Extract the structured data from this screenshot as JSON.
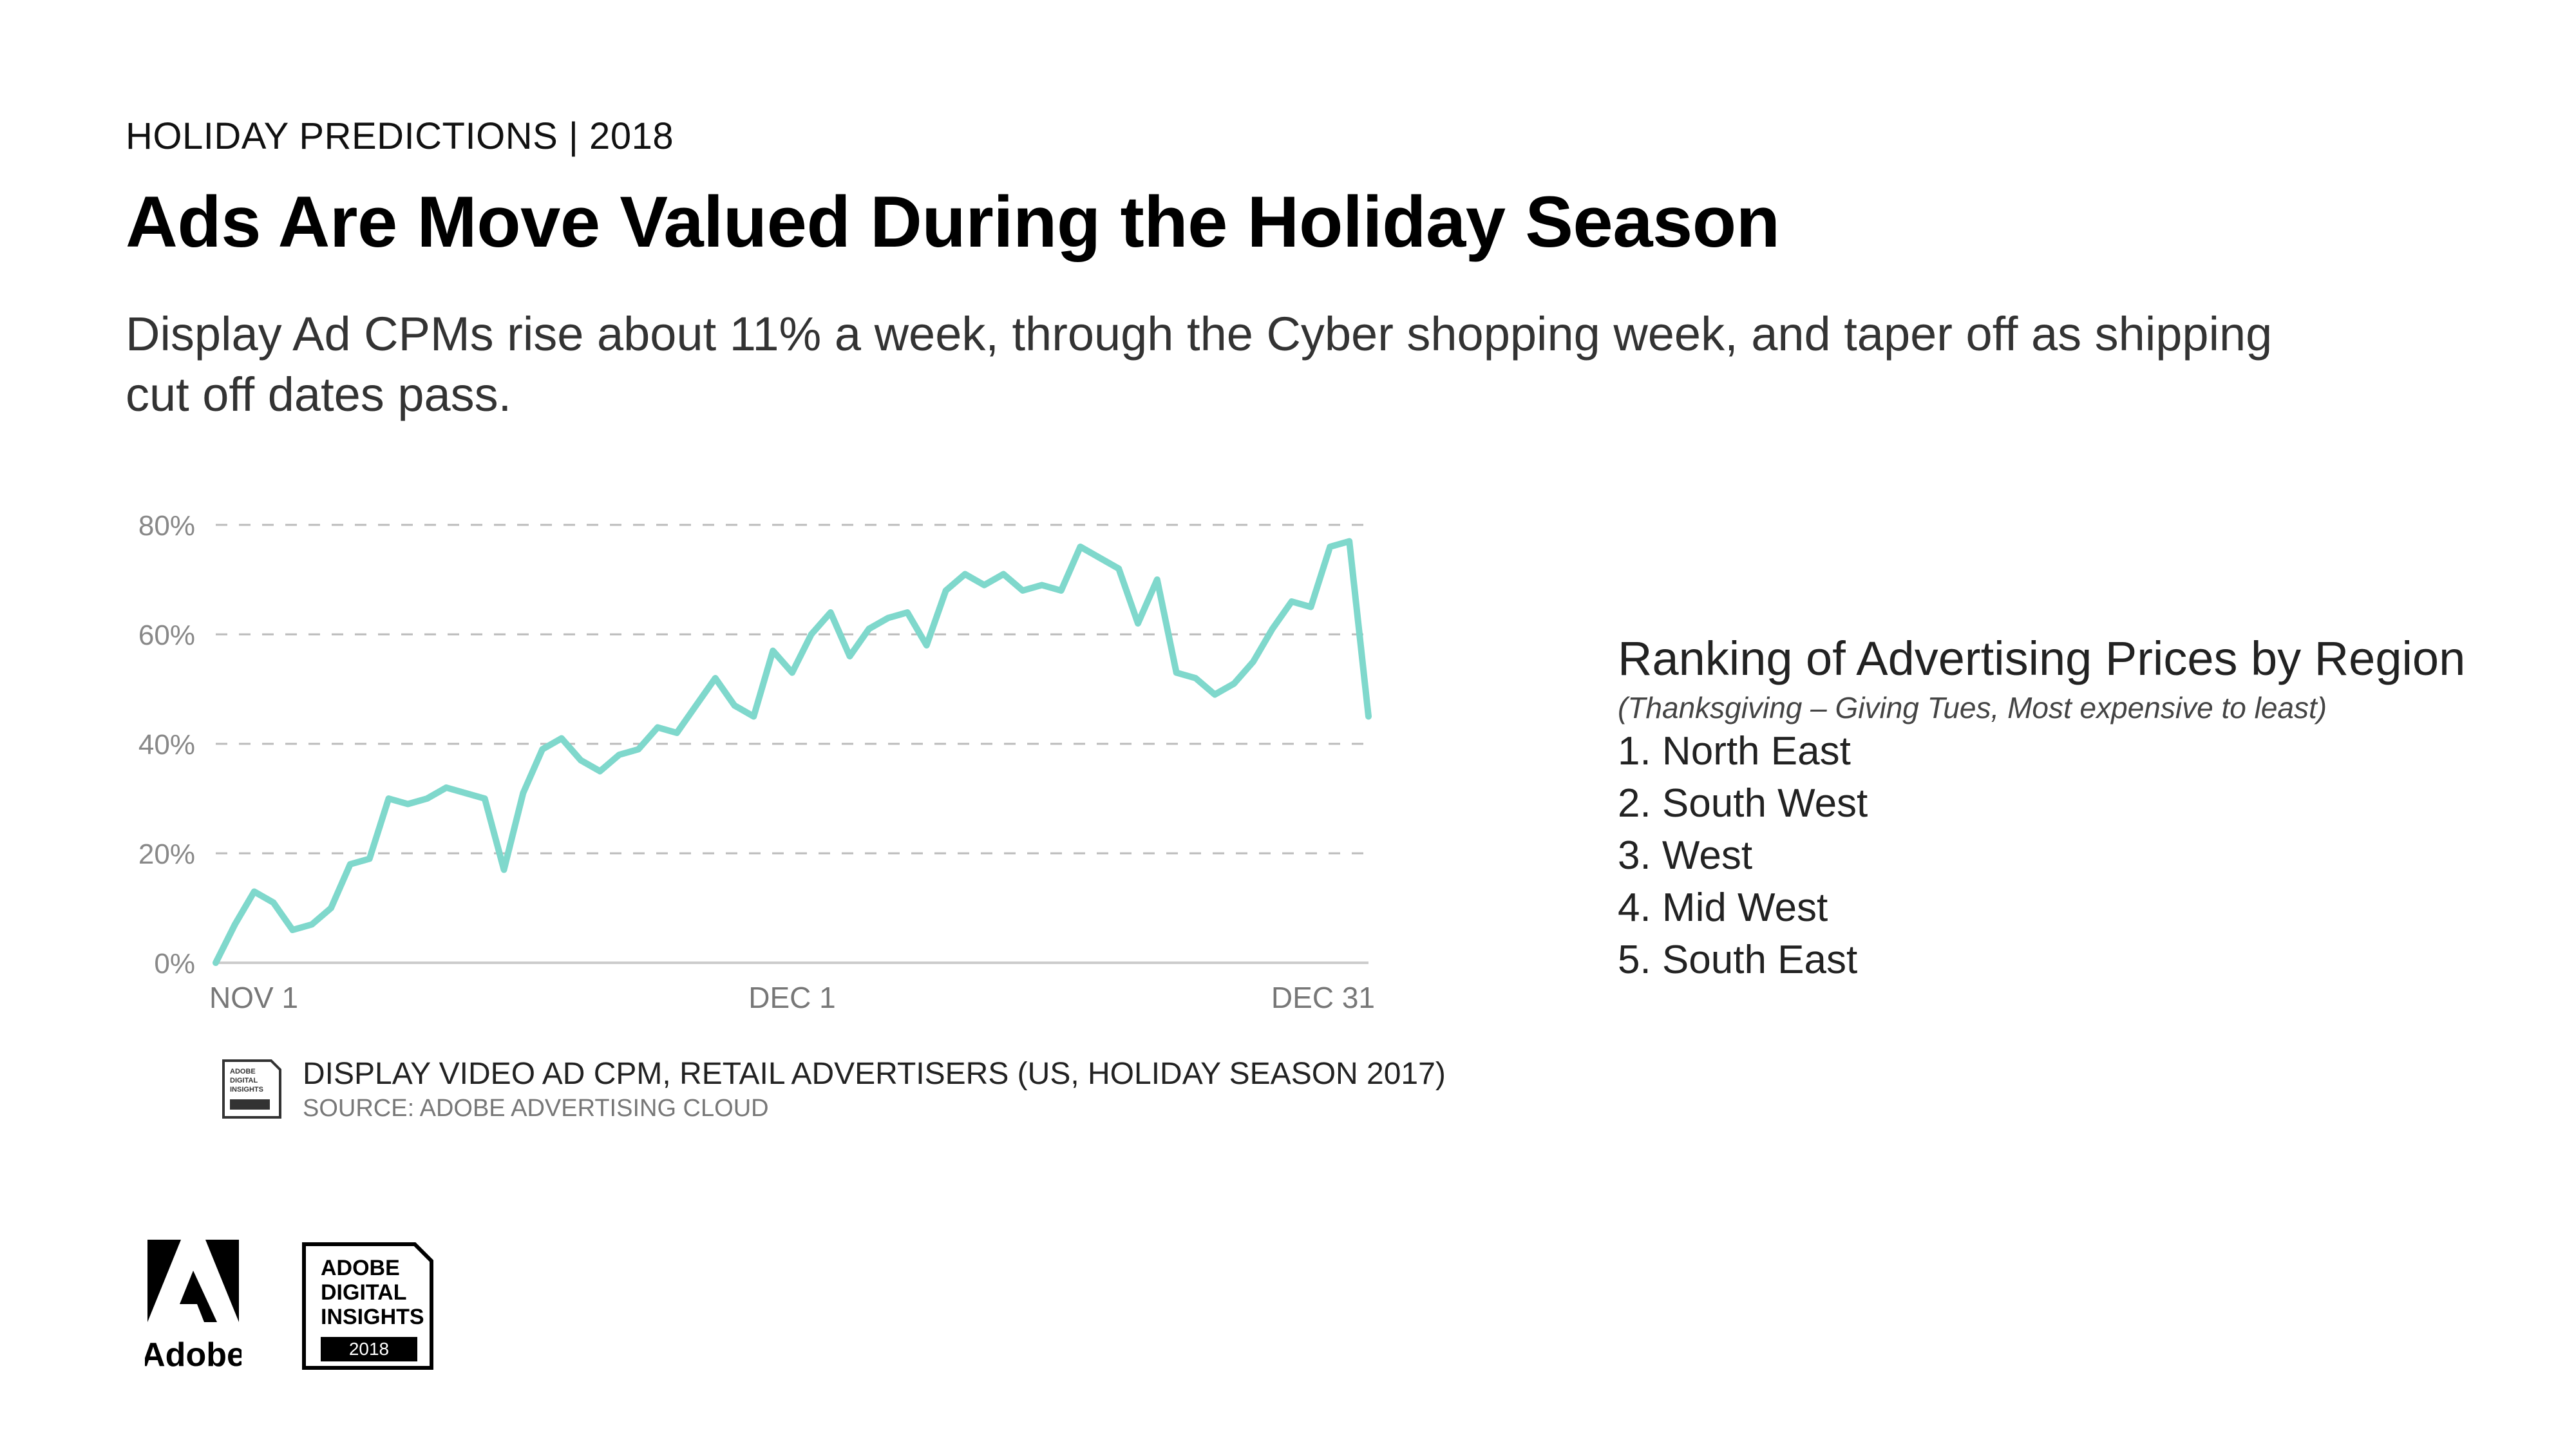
{
  "header": {
    "eyebrow": "HOLIDAY PREDICTIONS | 2018",
    "title": "Ads Are Move Valued During the Holiday Season",
    "subtitle": "Display Ad CPMs rise about 11% a week, through the Cyber shopping week, and taper off as shipping cut off dates pass."
  },
  "chart_data": {
    "type": "line",
    "title": "DISPLAY VIDEO AD CPM, RETAIL ADVERTISERS (US, HOLIDAY SEASON 2017)",
    "source": "SOURCE: ADOBE ADVERTISING CLOUD",
    "xlabel": "",
    "ylabel": "",
    "ylim": [
      0,
      80
    ],
    "grid": true,
    "x_ticks": [
      {
        "label": "NOV 1",
        "day": 1
      },
      {
        "label": "DEC 1",
        "day": 31
      },
      {
        "label": "DEC 31",
        "day": 61
      }
    ],
    "y_ticks": [
      {
        "label": "0%",
        "value": 0
      },
      {
        "label": "20%",
        "value": 20
      },
      {
        "label": "40%",
        "value": 40
      },
      {
        "label": "60%",
        "value": 60
      },
      {
        "label": "80%",
        "value": 80
      }
    ],
    "series": [
      {
        "name": "Display Video Ad CPM",
        "color": "#7fd8cc",
        "x": [
          1,
          2,
          3,
          4,
          5,
          6,
          7,
          8,
          9,
          10,
          11,
          12,
          13,
          14,
          15,
          16,
          17,
          18,
          19,
          20,
          21,
          22,
          23,
          24,
          25,
          26,
          27,
          28,
          29,
          30,
          31,
          32,
          33,
          34,
          35,
          36,
          37,
          38,
          39,
          40,
          41,
          42,
          43,
          44,
          45,
          46,
          47,
          48,
          49,
          50,
          51,
          52,
          53,
          54,
          55,
          56,
          57,
          58,
          59,
          60,
          61
        ],
        "values": [
          0,
          7,
          13,
          11,
          6,
          7,
          10,
          18,
          19,
          30,
          29,
          30,
          32,
          31,
          30,
          17,
          31,
          39,
          41,
          37,
          35,
          38,
          39,
          43,
          42,
          47,
          52,
          47,
          45,
          57,
          53,
          60,
          64,
          56,
          61,
          63,
          64,
          58,
          68,
          71,
          69,
          71,
          68,
          69,
          68,
          76,
          74,
          72,
          62,
          70,
          53,
          52,
          49,
          51,
          55,
          61,
          66,
          65,
          76,
          77,
          45
        ]
      }
    ]
  },
  "ranking": {
    "title": "Ranking of Advertising Prices by Region",
    "subtitle": "(Thanksgiving – Giving Tues, Most expensive to least)",
    "items": [
      "1. North East",
      "2. South West",
      "3. West",
      "4. Mid West",
      "5. South East"
    ]
  },
  "branding": {
    "adobe_logo_text": "Adobe",
    "badge_text": [
      "ADOBE",
      "DIGITAL",
      "INSIGHTS"
    ],
    "badge_year": "2018",
    "brand_red": "#000000"
  }
}
